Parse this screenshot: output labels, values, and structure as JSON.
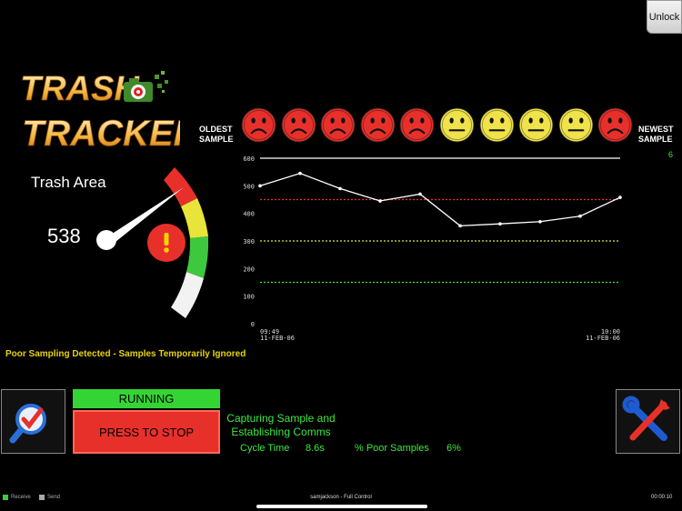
{
  "unlock_label": "Unlock",
  "logo": {
    "line1": "TRASH",
    "line2": "TRACKER"
  },
  "faces_header": {
    "oldest_line1": "OLDEST",
    "oldest_line2": "SAMPLE",
    "newest_line1": "NEWEST",
    "newest_line2": "SAMPLE",
    "newest_count": "6"
  },
  "faces": [
    "sad",
    "sad",
    "sad",
    "sad",
    "sad",
    "neutral",
    "neutral",
    "neutral",
    "neutral",
    "sad"
  ],
  "colors": {
    "sad": "#e8302a",
    "neutral": "#efe24a",
    "green_text": "#3ee83e",
    "warning": "#e8d400"
  },
  "gauge": {
    "label": "Trash Area",
    "value": "538",
    "alert_icon": "exclamation-icon"
  },
  "chart_data": {
    "type": "line",
    "y_ticks": [
      "600",
      "500",
      "400",
      "300",
      "200",
      "100",
      "0"
    ],
    "ylim": [
      0,
      600
    ],
    "x_start_time": "09:49",
    "x_start_date": "11-FEB-06",
    "x_end_time": "10:00",
    "x_end_date": "11-FEB-06",
    "values": [
      500,
      545,
      490,
      445,
      470,
      355,
      362,
      370,
      390,
      458
    ],
    "reference_lines": [
      {
        "value": 600,
        "color": "#ffffff",
        "style": "solid"
      },
      {
        "value": 450,
        "color": "#e8302a",
        "style": "dotted"
      },
      {
        "value": 300,
        "color": "#d8e84a",
        "style": "dotted"
      },
      {
        "value": 150,
        "color": "#3ee83e",
        "style": "dotted"
      }
    ]
  },
  "warning_text": "Poor Sampling Detected - Samples Temporarily Ignored",
  "controls": {
    "running_label": "RUNNING",
    "stop_label": "PRESS TO STOP",
    "status_line1": "Capturing Sample and",
    "status_line2": "Establishing Comms",
    "cycle_time_label": "Cycle Time",
    "cycle_time_value": "8.6s",
    "poor_samples_label": "% Poor Samples",
    "poor_samples_value": "6%"
  },
  "footer": {
    "receive_label": "Receive",
    "send_label": "Send",
    "user": "samjackson - Full Control",
    "time": "00:00:10"
  }
}
